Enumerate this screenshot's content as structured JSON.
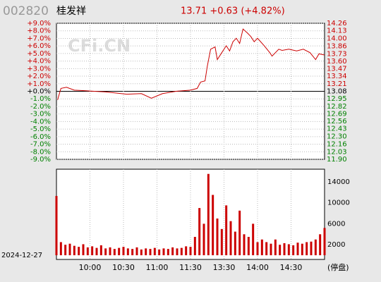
{
  "chart_data": [
    {
      "type": "line",
      "code": "002820",
      "title": "桂发祥",
      "quote": "13.71 +0.63 (+4.82%)",
      "watermark": "CFi.CN",
      "positive_color": "#cc0000",
      "negative_color": "#008000",
      "zero_color": "#000000",
      "xlim": [
        0,
        240
      ],
      "xticks": [
        {
          "value": 30,
          "label": "10:00"
        },
        {
          "value": 60,
          "label": "10:30"
        },
        {
          "value": 90,
          "label": "11:00"
        },
        {
          "value": 120,
          "label": "11:30"
        },
        {
          "value": 150,
          "label": "13:30"
        },
        {
          "value": 180,
          "label": "14:00"
        },
        {
          "value": 210,
          "label": "14:30"
        }
      ],
      "ylim": [
        -9,
        9
      ],
      "yticks": [
        {
          "value": 9,
          "label": "+9.0%"
        },
        {
          "value": 8,
          "label": "+8.0%"
        },
        {
          "value": 7,
          "label": "+7.0%"
        },
        {
          "value": 6,
          "label": "+6.0%"
        },
        {
          "value": 5,
          "label": "+5.0%"
        },
        {
          "value": 4,
          "label": "+4.0%"
        },
        {
          "value": 3,
          "label": "+3.0%"
        },
        {
          "value": 2,
          "label": "+2.0%"
        },
        {
          "value": 1,
          "label": "+1.0%"
        },
        {
          "value": 0,
          "label": "+0.0%"
        },
        {
          "value": -1,
          "label": "-1.0%"
        },
        {
          "value": -2,
          "label": "-2.0%"
        },
        {
          "value": -3,
          "label": "-3.0%"
        },
        {
          "value": -4,
          "label": "-4.0%"
        },
        {
          "value": -5,
          "label": "-5.0%"
        },
        {
          "value": -6,
          "label": "-6.0%"
        },
        {
          "value": -7,
          "label": "-7.0%"
        },
        {
          "value": -8,
          "label": "-8.0%"
        },
        {
          "value": -9,
          "label": "-9.0%"
        }
      ],
      "y2lim": [
        11.9,
        14.26
      ],
      "y2ticks": [
        14.26,
        14.13,
        {
          "value": 14.0,
          "label": "14.00"
        },
        13.86,
        13.73,
        {
          "value": 13.6,
          "label": "13.60"
        },
        13.47,
        13.34,
        13.21,
        13.08,
        12.95,
        12.82,
        12.69,
        12.56,
        12.43,
        {
          "value": 12.3,
          "label": "12.30"
        },
        12.16,
        12.03,
        {
          "value": 11.9,
          "label": "11.90"
        }
      ],
      "grid": true,
      "series": [
        {
          "name": "price",
          "color": "#cc0000",
          "axis": "y2",
          "x": [
            1,
            4,
            9,
            16,
            25,
            44,
            63,
            76,
            85,
            95,
            107,
            120,
            126,
            129,
            133,
            135,
            138,
            142,
            144,
            148,
            152,
            155,
            158,
            161,
            164,
            167,
            171,
            174,
            177,
            180,
            186,
            191,
            193,
            199,
            202,
            208,
            215,
            221,
            227,
            232,
            235,
            240
          ],
          "values": [
            12.93,
            13.13,
            13.15,
            13.1,
            13.09,
            13.07,
            13.03,
            13.04,
            12.96,
            13.04,
            13.08,
            13.1,
            13.13,
            13.24,
            13.26,
            13.51,
            13.81,
            13.85,
            13.63,
            13.75,
            13.87,
            13.78,
            13.94,
            14.0,
            13.91,
            14.16,
            14.09,
            14.03,
            13.94,
            14.0,
            13.87,
            13.75,
            13.69,
            13.81,
            13.79,
            13.81,
            13.78,
            13.81,
            13.75,
            13.63,
            13.73,
            13.71
          ]
        }
      ]
    },
    {
      "type": "bar",
      "date": "2024-12-27",
      "unit": "(停盘)",
      "color": "#cc0000",
      "xlim": [
        0,
        240
      ],
      "ylim": [
        -800,
        16400
      ],
      "yticks": [
        14000,
        10000,
        6000,
        2000
      ],
      "x": [
        0,
        4,
        8,
        12,
        16,
        20,
        24,
        28,
        32,
        36,
        40,
        44,
        48,
        52,
        56,
        60,
        64,
        68,
        72,
        76,
        80,
        84,
        88,
        92,
        96,
        100,
        104,
        108,
        112,
        116,
        120,
        124,
        128,
        132,
        136,
        140,
        144,
        148,
        152,
        156,
        160,
        164,
        168,
        172,
        176,
        180,
        184,
        188,
        192,
        196,
        200,
        204,
        208,
        212,
        216,
        220,
        224,
        228,
        232,
        236,
        240
      ],
      "values": [
        11300,
        2500,
        2000,
        2200,
        1800,
        1600,
        2100,
        1500,
        1700,
        1400,
        1900,
        1300,
        1500,
        1200,
        1400,
        1600,
        1300,
        1200,
        1500,
        1100,
        1300,
        1200,
        1400,
        1100,
        1300,
        1200,
        1500,
        1300,
        1400,
        1700,
        1600,
        3500,
        9000,
        6000,
        15500,
        11500,
        7000,
        5000,
        9500,
        6500,
        4500,
        8500,
        4000,
        3500,
        6000,
        2500,
        3000,
        2500,
        2200,
        3000,
        2000,
        2300,
        2100,
        1900,
        2400,
        2200,
        2500,
        2600,
        3000,
        4000,
        5200
      ]
    }
  ]
}
